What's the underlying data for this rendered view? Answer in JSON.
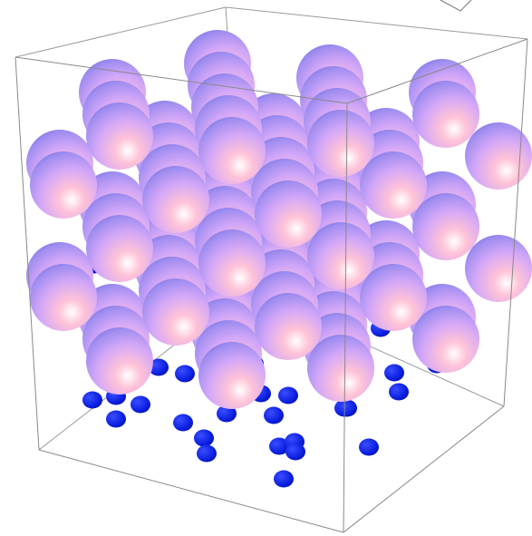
{
  "scene": {
    "background": "#ffffff",
    "box_color": "#8a8a8a",
    "sphere_gradient": [
      "#ffffff",
      "#ffc0d6",
      "#d9a8ff",
      "#9a87f0",
      "#6f6fe0"
    ],
    "dot_color": "#0b1fe0",
    "lattice": {
      "type": "fcc-like",
      "large_spheres_count": "many",
      "small_spheres_count": "many"
    }
  }
}
